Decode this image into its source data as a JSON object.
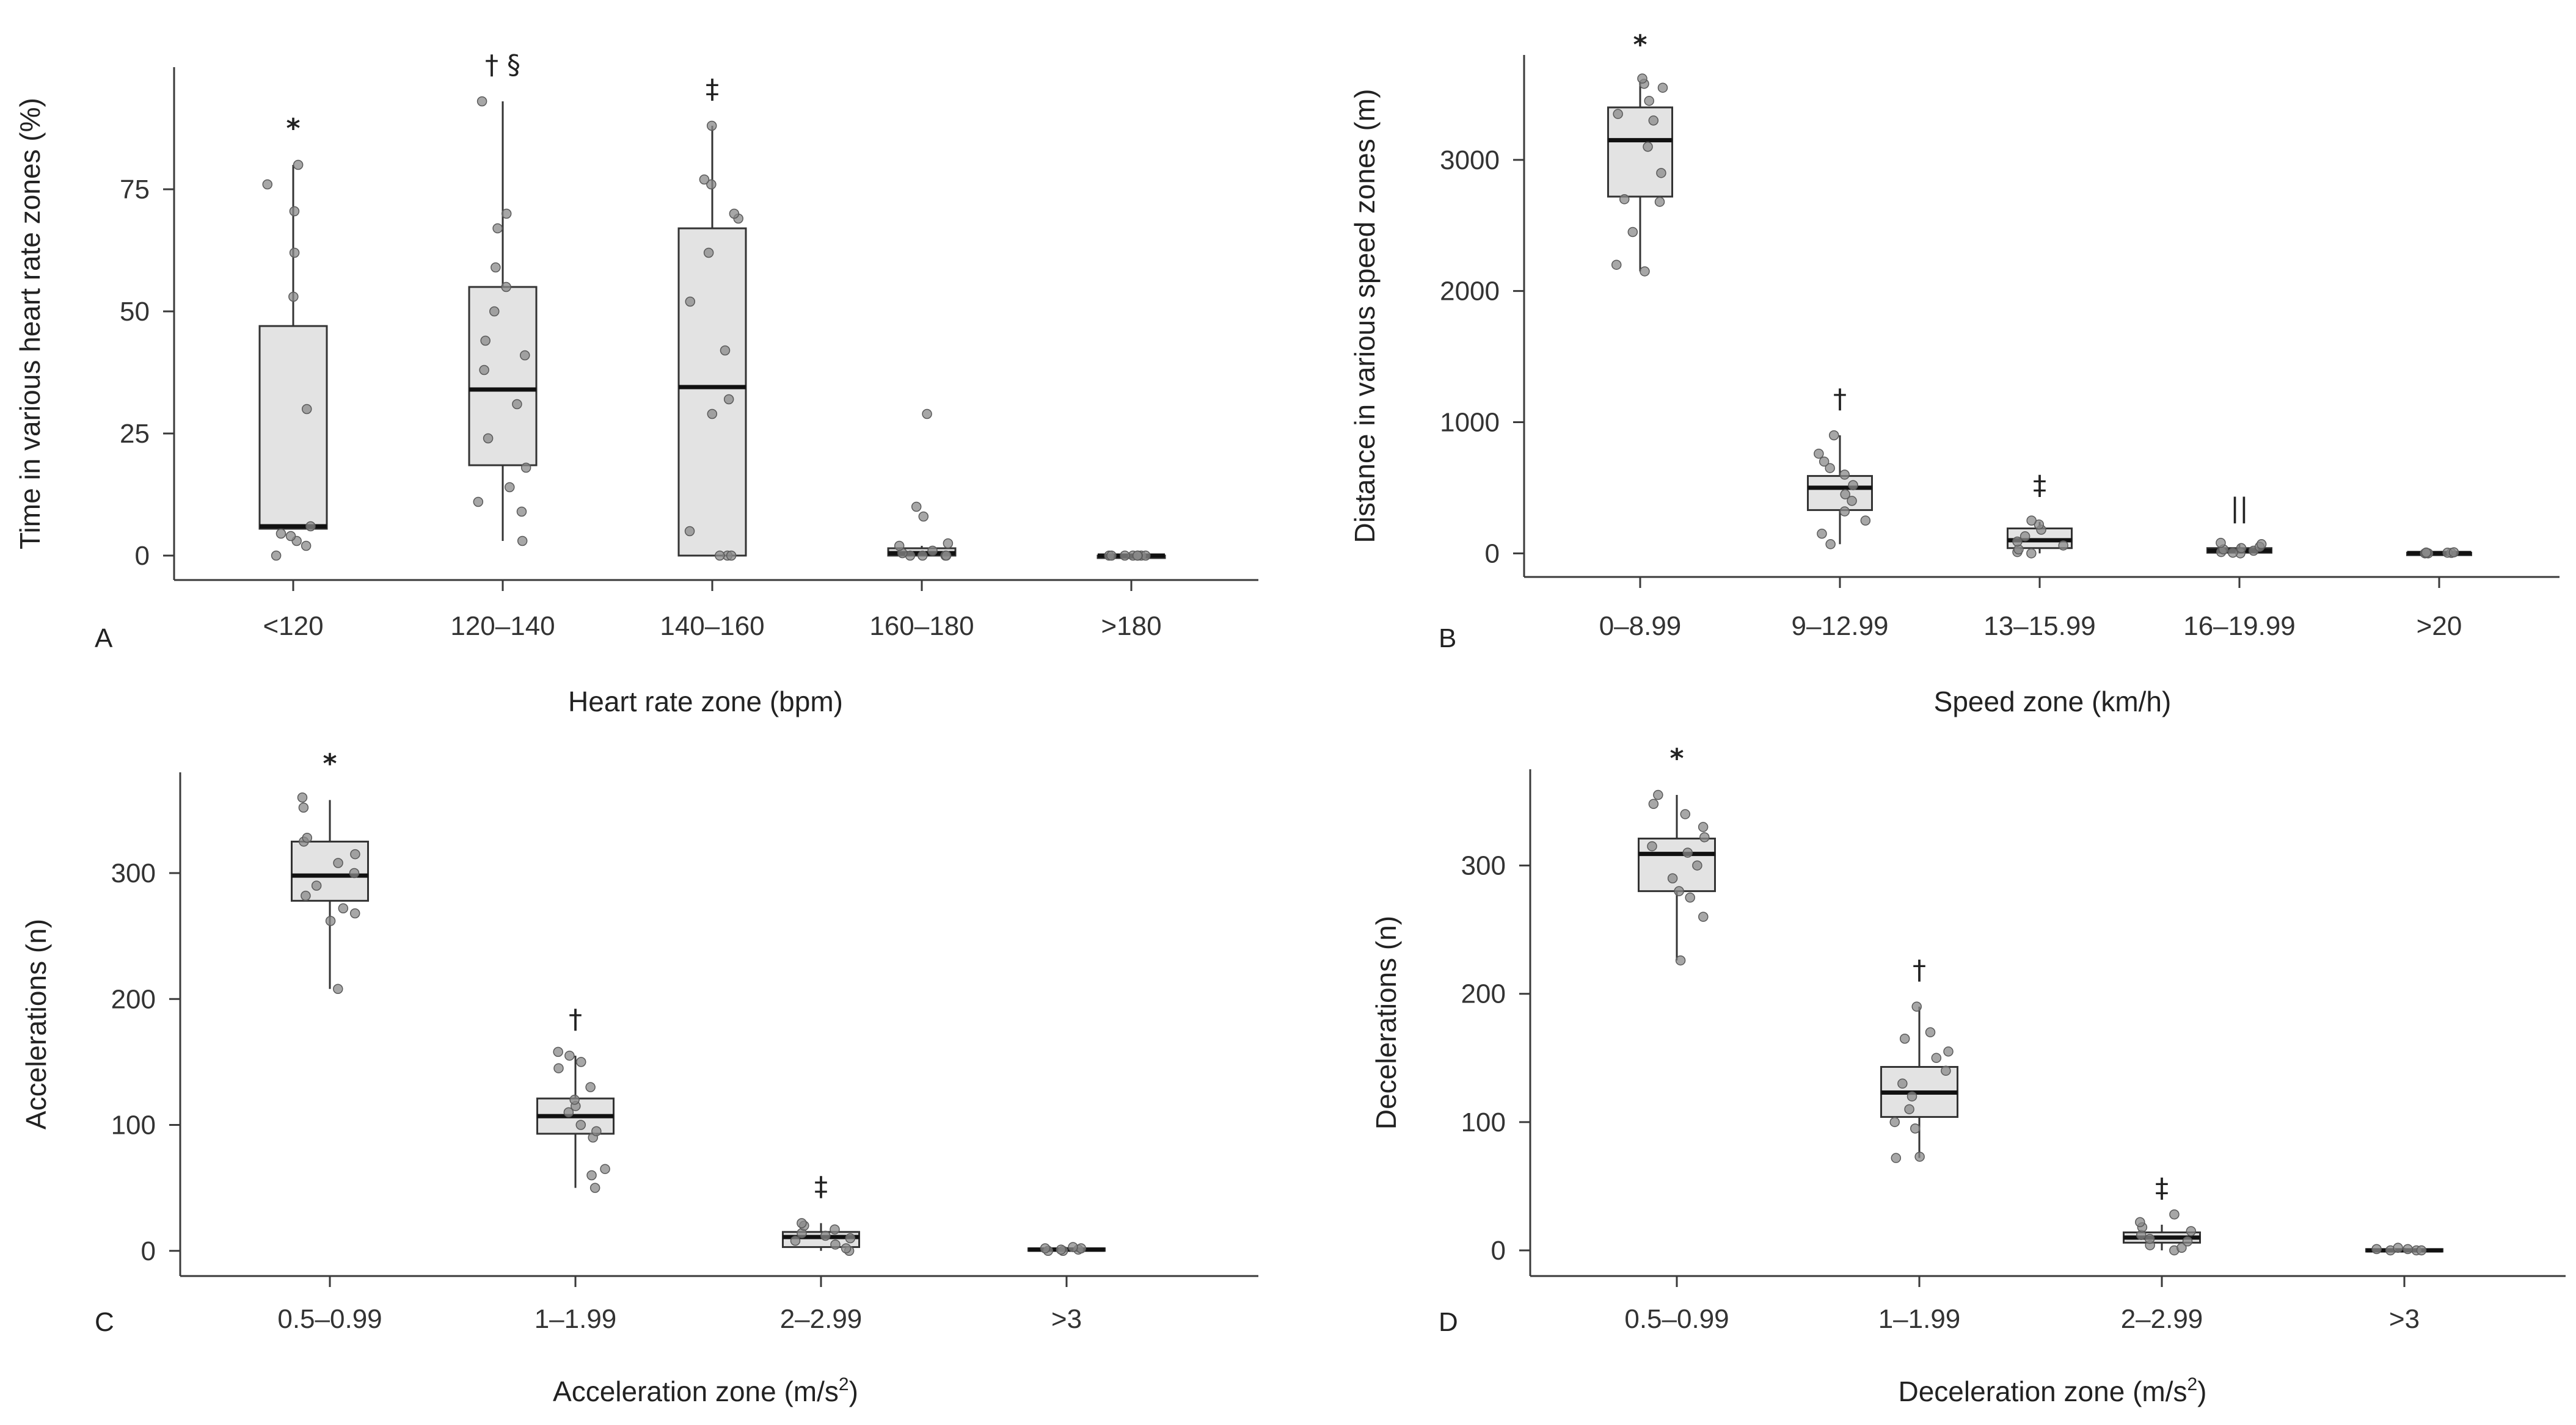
{
  "chart_data": [
    {
      "type": "box",
      "panel_label": "A",
      "xlabel": "Heart rate zone (bpm)",
      "ylabel": "Time in various heart rate zones (%)",
      "ylim": [
        -5,
        100
      ],
      "yticks": [
        0,
        25,
        50,
        75
      ],
      "ytick_labels": [
        "0",
        "25",
        "50",
        "75"
      ],
      "categories": [
        "<120",
        "120–140",
        "140–160",
        "160–180",
        ">180"
      ],
      "boxes": [
        {
          "q1": 5.5,
          "median": 6,
          "q3": 47,
          "whisker_low": 5.5,
          "whisker_high": 80,
          "annotation": "*",
          "points": [
            0,
            2,
            3,
            4,
            4.5,
            6,
            30,
            53,
            62,
            70.5,
            76,
            80
          ]
        },
        {
          "q1": 18.5,
          "median": 34,
          "q3": 55,
          "whisker_low": 3,
          "whisker_high": 93,
          "annotation": "† §",
          "points": [
            3,
            9,
            11,
            14,
            18,
            24,
            31,
            38,
            41,
            44,
            50,
            55,
            59,
            67,
            70,
            93
          ]
        },
        {
          "q1": 0,
          "median": 34.5,
          "q3": 67,
          "whisker_low": 0,
          "whisker_high": 88,
          "annotation": "‡",
          "points": [
            0,
            0,
            0,
            5,
            29,
            32,
            42,
            52,
            62,
            69,
            70,
            76,
            77,
            88
          ]
        },
        {
          "q1": 0,
          "median": 0.5,
          "q3": 1.5,
          "whisker_low": 0,
          "whisker_high": 2,
          "annotation": "",
          "points": [
            0,
            0,
            0,
            0,
            0.5,
            1,
            2,
            2.5,
            8,
            10,
            29
          ]
        },
        {
          "q1": 0,
          "median": 0,
          "q3": 0,
          "whisker_low": 0,
          "whisker_high": 0,
          "annotation": "",
          "points": [
            0,
            0,
            0,
            0,
            0,
            0,
            0,
            0
          ]
        }
      ]
    },
    {
      "type": "box",
      "panel_label": "B",
      "xlabel": "Speed zone (km/h)",
      "ylabel": "Distance in various speed zones (m)",
      "ylim": [
        -180,
        3800
      ],
      "yticks": [
        0,
        1000,
        2000,
        3000
      ],
      "ytick_labels": [
        "0",
        "1000",
        "2000",
        "3000"
      ],
      "categories": [
        "0–8.99",
        "9–12.99",
        "13–15.99",
        "16–19.99",
        ">20"
      ],
      "boxes": [
        {
          "q1": 2720,
          "median": 3150,
          "q3": 3400,
          "whisker_low": 2150,
          "whisker_high": 3600,
          "annotation": "*",
          "points": [
            2150,
            2200,
            2450,
            2680,
            2700,
            2900,
            3100,
            3300,
            3350,
            3450,
            3550,
            3580,
            3620
          ]
        },
        {
          "q1": 330,
          "median": 500,
          "q3": 590,
          "whisker_low": 70,
          "whisker_high": 900,
          "annotation": "†",
          "points": [
            70,
            150,
            250,
            320,
            400,
            450,
            520,
            600,
            650,
            700,
            760,
            900
          ]
        },
        {
          "q1": 40,
          "median": 100,
          "q3": 190,
          "whisker_low": 0,
          "whisker_high": 240,
          "annotation": "‡",
          "points": [
            0,
            10,
            30,
            60,
            90,
            130,
            180,
            220,
            250
          ]
        },
        {
          "q1": 5,
          "median": 20,
          "q3": 40,
          "whisker_low": 0,
          "whisker_high": 70,
          "annotation": "||",
          "points": [
            0,
            5,
            10,
            20,
            30,
            40,
            50,
            70,
            80
          ]
        },
        {
          "q1": 0,
          "median": 2,
          "q3": 5,
          "whisker_low": 0,
          "whisker_high": 8,
          "annotation": "",
          "points": [
            0,
            0,
            2,
            3,
            5,
            6,
            8
          ]
        }
      ]
    },
    {
      "type": "box",
      "panel_label": "C",
      "xlabel": "Acceleration zone (m/s2)",
      "xlabel_main": "Acceleration zone (m/s",
      "xlabel_sup": "2",
      "xlabel_end": ")",
      "ylabel": "Accelerations (n)",
      "ylim": [
        -20,
        380
      ],
      "yticks": [
        0,
        100,
        200,
        300
      ],
      "ytick_labels": [
        "0",
        "100",
        "200",
        "300"
      ],
      "categories": [
        "0.5–0.99",
        "1–1.99",
        "2–2.99",
        ">3"
      ],
      "boxes": [
        {
          "q1": 278,
          "median": 298,
          "q3": 325,
          "whisker_low": 208,
          "whisker_high": 358,
          "annotation": "*",
          "points": [
            208,
            262,
            268,
            272,
            282,
            290,
            300,
            308,
            315,
            325,
            328,
            352,
            360
          ]
        },
        {
          "q1": 93,
          "median": 107,
          "q3": 121,
          "whisker_low": 50,
          "whisker_high": 155,
          "annotation": "†",
          "points": [
            50,
            60,
            65,
            90,
            95,
            100,
            110,
            115,
            120,
            130,
            145,
            150,
            155,
            158
          ]
        },
        {
          "q1": 3,
          "median": 11,
          "q3": 15,
          "whisker_low": 0,
          "whisker_high": 22,
          "annotation": "‡",
          "points": [
            0,
            2,
            5,
            8,
            10,
            12,
            14,
            17,
            20,
            22
          ]
        },
        {
          "q1": 0,
          "median": 1,
          "q3": 2,
          "whisker_low": 0,
          "whisker_high": 3,
          "annotation": "",
          "points": [
            0,
            0,
            1,
            1,
            2,
            2,
            3
          ]
        }
      ]
    },
    {
      "type": "box",
      "panel_label": "D",
      "xlabel": "Deceleration zone (m/s2)",
      "xlabel_main": "Deceleration zone (m/s",
      "xlabel_sup": "2",
      "xlabel_end": ")",
      "ylabel": "Decelerations (n)",
      "ylim": [
        -20,
        375
      ],
      "yticks": [
        0,
        100,
        200,
        300
      ],
      "ytick_labels": [
        "0",
        "100",
        "200",
        "300"
      ],
      "categories": [
        "0.5–0.99",
        "1–1.99",
        "2–2.99",
        ">3"
      ],
      "boxes": [
        {
          "q1": 280,
          "median": 309,
          "q3": 321,
          "whisker_low": 226,
          "whisker_high": 355,
          "annotation": "*",
          "points": [
            226,
            260,
            275,
            280,
            290,
            300,
            310,
            315,
            322,
            330,
            340,
            348,
            355
          ]
        },
        {
          "q1": 104,
          "median": 123,
          "q3": 143,
          "whisker_low": 72,
          "whisker_high": 190,
          "annotation": "†",
          "points": [
            72,
            73,
            95,
            100,
            110,
            120,
            130,
            140,
            150,
            155,
            165,
            170,
            190
          ]
        },
        {
          "q1": 6,
          "median": 10,
          "q3": 14,
          "whisker_low": 0,
          "whisker_high": 20,
          "annotation": "‡",
          "points": [
            0,
            2,
            4,
            7,
            9,
            12,
            15,
            18,
            22,
            28
          ]
        },
        {
          "q1": 0,
          "median": 0,
          "q3": 1,
          "whisker_low": 0,
          "whisker_high": 2,
          "annotation": "",
          "points": [
            0,
            0,
            0,
            1,
            1,
            2
          ]
        }
      ]
    }
  ]
}
